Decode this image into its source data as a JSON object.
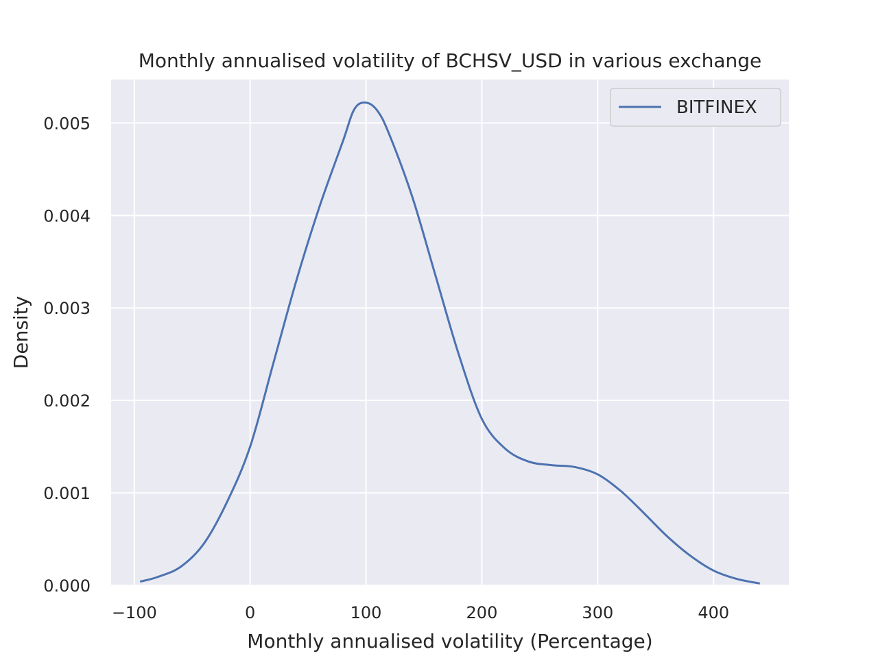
{
  "chart_data": {
    "type": "line",
    "title": "Monthly annualised volatility of BCHSV_USD in various exchange",
    "xlabel": "Monthly annualised volatility (Percentage)",
    "ylabel": "Density",
    "xlim": [
      -120,
      465
    ],
    "ylim": [
      0,
      0.00547
    ],
    "x_ticks": [
      -100,
      0,
      100,
      200,
      300,
      400
    ],
    "x_tick_labels": [
      "−100",
      "0",
      "100",
      "200",
      "300",
      "400"
    ],
    "y_ticks": [
      0,
      0.001,
      0.002,
      0.003,
      0.004,
      0.005
    ],
    "y_tick_labels": [
      "0.000",
      "0.001",
      "0.002",
      "0.003",
      "0.004",
      "0.005"
    ],
    "grid": true,
    "legend": {
      "placement": "top-right"
    },
    "colors": {
      "background": "#eaeaf2",
      "grid": "#ffffff",
      "line": "#4c72b0"
    },
    "series": [
      {
        "name": "BITFINEX",
        "x": [
          -95,
          -80,
          -60,
          -40,
          -20,
          0,
          20,
          40,
          60,
          80,
          90,
          100,
          110,
          120,
          140,
          160,
          180,
          200,
          220,
          240,
          260,
          280,
          300,
          320,
          340,
          360,
          380,
          400,
          420,
          440
        ],
        "y": [
          4e-05,
          9e-05,
          0.0002,
          0.00045,
          0.0009,
          0.0015,
          0.0024,
          0.0033,
          0.0041,
          0.0048,
          0.00515,
          0.00522,
          0.00513,
          0.00488,
          0.0042,
          0.00335,
          0.0025,
          0.0018,
          0.00148,
          0.00134,
          0.0013,
          0.00128,
          0.0012,
          0.00102,
          0.00078,
          0.00053,
          0.00032,
          0.00016,
          7e-05,
          2e-05
        ]
      }
    ]
  }
}
